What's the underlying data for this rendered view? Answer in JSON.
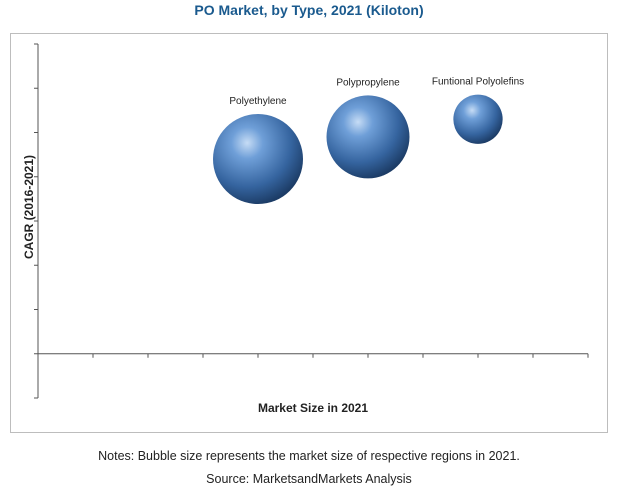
{
  "chart_data": {
    "type": "bubble",
    "title": "PO Market, by Type, 2021 (Kiloton)",
    "xlabel": "Market Size in 2021",
    "ylabel": "CAGR (2016-2021)",
    "grid": false,
    "points": [
      {
        "label": "Polyethylene",
        "x": 4.0,
        "y": 4.4,
        "size": 1.0
      },
      {
        "label": "Polypropylene",
        "x": 6.0,
        "y": 4.9,
        "size": 0.85
      },
      {
        "label": "Funtional Polyolefins",
        "x": 8.0,
        "y": 5.3,
        "size": 0.3
      }
    ],
    "xlim": [
      0,
      10
    ],
    "ylim": [
      -1,
      7
    ],
    "color": "#3e6fae"
  },
  "footer": {
    "notes": "Notes: Bubble size represents the market size of respective regions in 2021.",
    "source": "Source: MarketsandMarkets Analysis"
  }
}
